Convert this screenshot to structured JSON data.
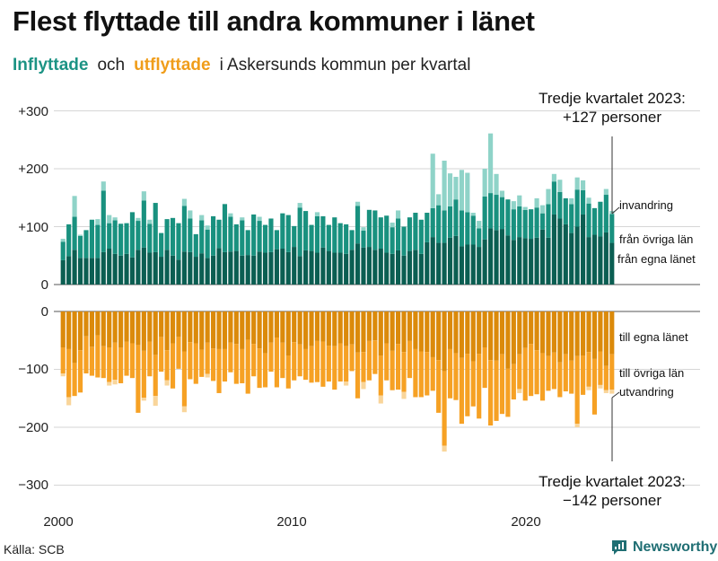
{
  "title": "Flest flyttade till andra kommuner i länet",
  "subtitle": {
    "in_word": "Inflyttade",
    "and_word": "och",
    "out_word": "utflyttade",
    "rest": "i Askersunds  kommun  per  kvartal"
  },
  "source": "Källa: SCB",
  "brand": "Newsworthy",
  "colors": {
    "in_dark": "#0b5e52",
    "in_mid": "#19917f",
    "in_light": "#8fd3c8",
    "out_dark": "#db8a0b",
    "out_mid": "#f6a124",
    "out_light": "#f9d59a"
  },
  "chart_data": {
    "type": "bar",
    "stacked": true,
    "x_start": 2000,
    "quarters": 96,
    "xticks": [
      "2000",
      "2010",
      "2020"
    ],
    "ylim": [
      -300,
      300
    ],
    "yticks_top": [
      "+300",
      "+200",
      "+100",
      "0"
    ],
    "yticks_bottom": [
      "0",
      "−100",
      "−200",
      "−300"
    ],
    "annotations": {
      "top": [
        "Tredje kvartalet 2023:",
        "+127 personer"
      ],
      "bottom": [
        "Tredje kvartalet 2023:",
        "−142 personer"
      ]
    },
    "series_in": [
      {
        "name": "från egna länet",
        "values": [
          42,
          49,
          60,
          46,
          46,
          46,
          46,
          56,
          62,
          53,
          50,
          53,
          47,
          60,
          64,
          55,
          56,
          48,
          60,
          50,
          43,
          57,
          56,
          48,
          54,
          46,
          50,
          63,
          56,
          57,
          58,
          50,
          51,
          50,
          57,
          55,
          56,
          61,
          62,
          56,
          65,
          49,
          59,
          58,
          55,
          64,
          58,
          55,
          55,
          53,
          60,
          71,
          64,
          65,
          60,
          62,
          55,
          53,
          59,
          50,
          58,
          60,
          53,
          73,
          82,
          72,
          72,
          81,
          84,
          66,
          69,
          69,
          65,
          78,
          97,
          94,
          96,
          85,
          77,
          82,
          80,
          79,
          81,
          95,
          81,
          121,
          114,
          104,
          89,
          100,
          121,
          82,
          86,
          83,
          90,
          72
        ]
      },
      {
        "name": "från övriga län",
        "values": [
          32,
          55,
          57,
          38,
          48,
          66,
          57,
          106,
          44,
          58,
          55,
          53,
          78,
          50,
          81,
          50,
          85,
          41,
          53,
          65,
          63,
          79,
          58,
          39,
          57,
          49,
          68,
          49,
          83,
          60,
          46,
          61,
          43,
          71,
          53,
          48,
          58,
          33,
          61,
          64,
          36,
          84,
          68,
          45,
          63,
          54,
          45,
          61,
          51,
          51,
          34,
          65,
          29,
          64,
          68,
          54,
          64,
          46,
          55,
          50,
          58,
          64,
          59,
          51,
          50,
          65,
          56,
          54,
          63,
          62,
          56,
          50,
          32,
          74,
          61,
          61,
          55,
          62,
          53,
          53,
          49,
          51,
          52,
          28,
          58,
          57,
          46,
          45,
          50,
          64,
          42,
          58,
          46,
          60,
          65,
          50
        ]
      },
      {
        "name": "invandring",
        "values": [
          5,
          0,
          36,
          2,
          0,
          0,
          10,
          16,
          14,
          5,
          0,
          0,
          0,
          5,
          16,
          7,
          0,
          0,
          0,
          0,
          0,
          12,
          14,
          0,
          9,
          7,
          0,
          0,
          0,
          6,
          0,
          5,
          0,
          0,
          7,
          0,
          0,
          0,
          0,
          0,
          0,
          8,
          0,
          0,
          7,
          0,
          0,
          0,
          0,
          0,
          0,
          7,
          6,
          0,
          0,
          0,
          0,
          8,
          14,
          0,
          0,
          0,
          0,
          0,
          94,
          19,
          86,
          57,
          39,
          70,
          68,
          5,
          13,
          48,
          103,
          36,
          11,
          0,
          14,
          19,
          5,
          0,
          16,
          14,
          26,
          13,
          21,
          0,
          10,
          21,
          17,
          10,
          0,
          0,
          10,
          5
        ]
      }
    ],
    "series_out": [
      {
        "name": "till egna länet",
        "values": [
          62,
          65,
          89,
          67,
          43,
          61,
          41,
          60,
          62,
          54,
          62,
          52,
          55,
          58,
          68,
          52,
          75,
          44,
          67,
          55,
          44,
          69,
          53,
          55,
          66,
          54,
          64,
          65,
          65,
          54,
          56,
          65,
          49,
          56,
          64,
          72,
          54,
          45,
          54,
          76,
          53,
          57,
          65,
          60,
          51,
          52,
          59,
          60,
          55,
          60,
          57,
          71,
          70,
          51,
          50,
          76,
          55,
          68,
          56,
          70,
          51,
          65,
          69,
          70,
          79,
          84,
          103,
          65,
          72,
          80,
          73,
          86,
          73,
          62,
          84,
          85,
          74,
          99,
          91,
          74,
          63,
          56,
          67,
          72,
          77,
          71,
          88,
          74,
          85,
          77,
          76,
          70,
          82,
          69,
          94,
          74
        ]
      },
      {
        "name": "till övriga län",
        "values": [
          45,
          83,
          57,
          73,
          64,
          50,
          73,
          55,
          60,
          64,
          62,
          59,
          60,
          117,
          81,
          60,
          71,
          60,
          52,
          78,
          55,
          95,
          64,
          70,
          47,
          54,
          56,
          76,
          56,
          51,
          69,
          59,
          93,
          56,
          68,
          59,
          50,
          86,
          61,
          57,
          66,
          55,
          53,
          63,
          71,
          78,
          62,
          75,
          66,
          61,
          46,
          79,
          52,
          68,
          58,
          69,
          64,
          68,
          79,
          69,
          64,
          83,
          79,
          75,
          58,
          91,
          129,
          85,
          81,
          114,
          108,
          78,
          112,
          70,
          113,
          104,
          103,
          83,
          61,
          60,
          91,
          90,
          76,
          82,
          60,
          63,
          60,
          64,
          57,
          117,
          68,
          60,
          96,
          58,
          42,
          61
        ]
      },
      {
        "name": "utvandring",
        "values": [
          5,
          14,
          0,
          0,
          0,
          0,
          0,
          0,
          6,
          8,
          0,
          0,
          0,
          0,
          5,
          0,
          17,
          0,
          9,
          0,
          0,
          10,
          0,
          0,
          0,
          6,
          0,
          0,
          0,
          0,
          0,
          0,
          0,
          0,
          0,
          0,
          0,
          0,
          0,
          0,
          0,
          0,
          0,
          0,
          0,
          0,
          0,
          0,
          0,
          7,
          0,
          0,
          12,
          0,
          0,
          14,
          0,
          0,
          0,
          12,
          0,
          0,
          0,
          0,
          0,
          0,
          10,
          0,
          0,
          0,
          0,
          0,
          0,
          0,
          0,
          0,
          0,
          0,
          0,
          7,
          0,
          0,
          0,
          0,
          0,
          0,
          0,
          0,
          0,
          6,
          0,
          6,
          0,
          6,
          5,
          7
        ]
      }
    ]
  }
}
